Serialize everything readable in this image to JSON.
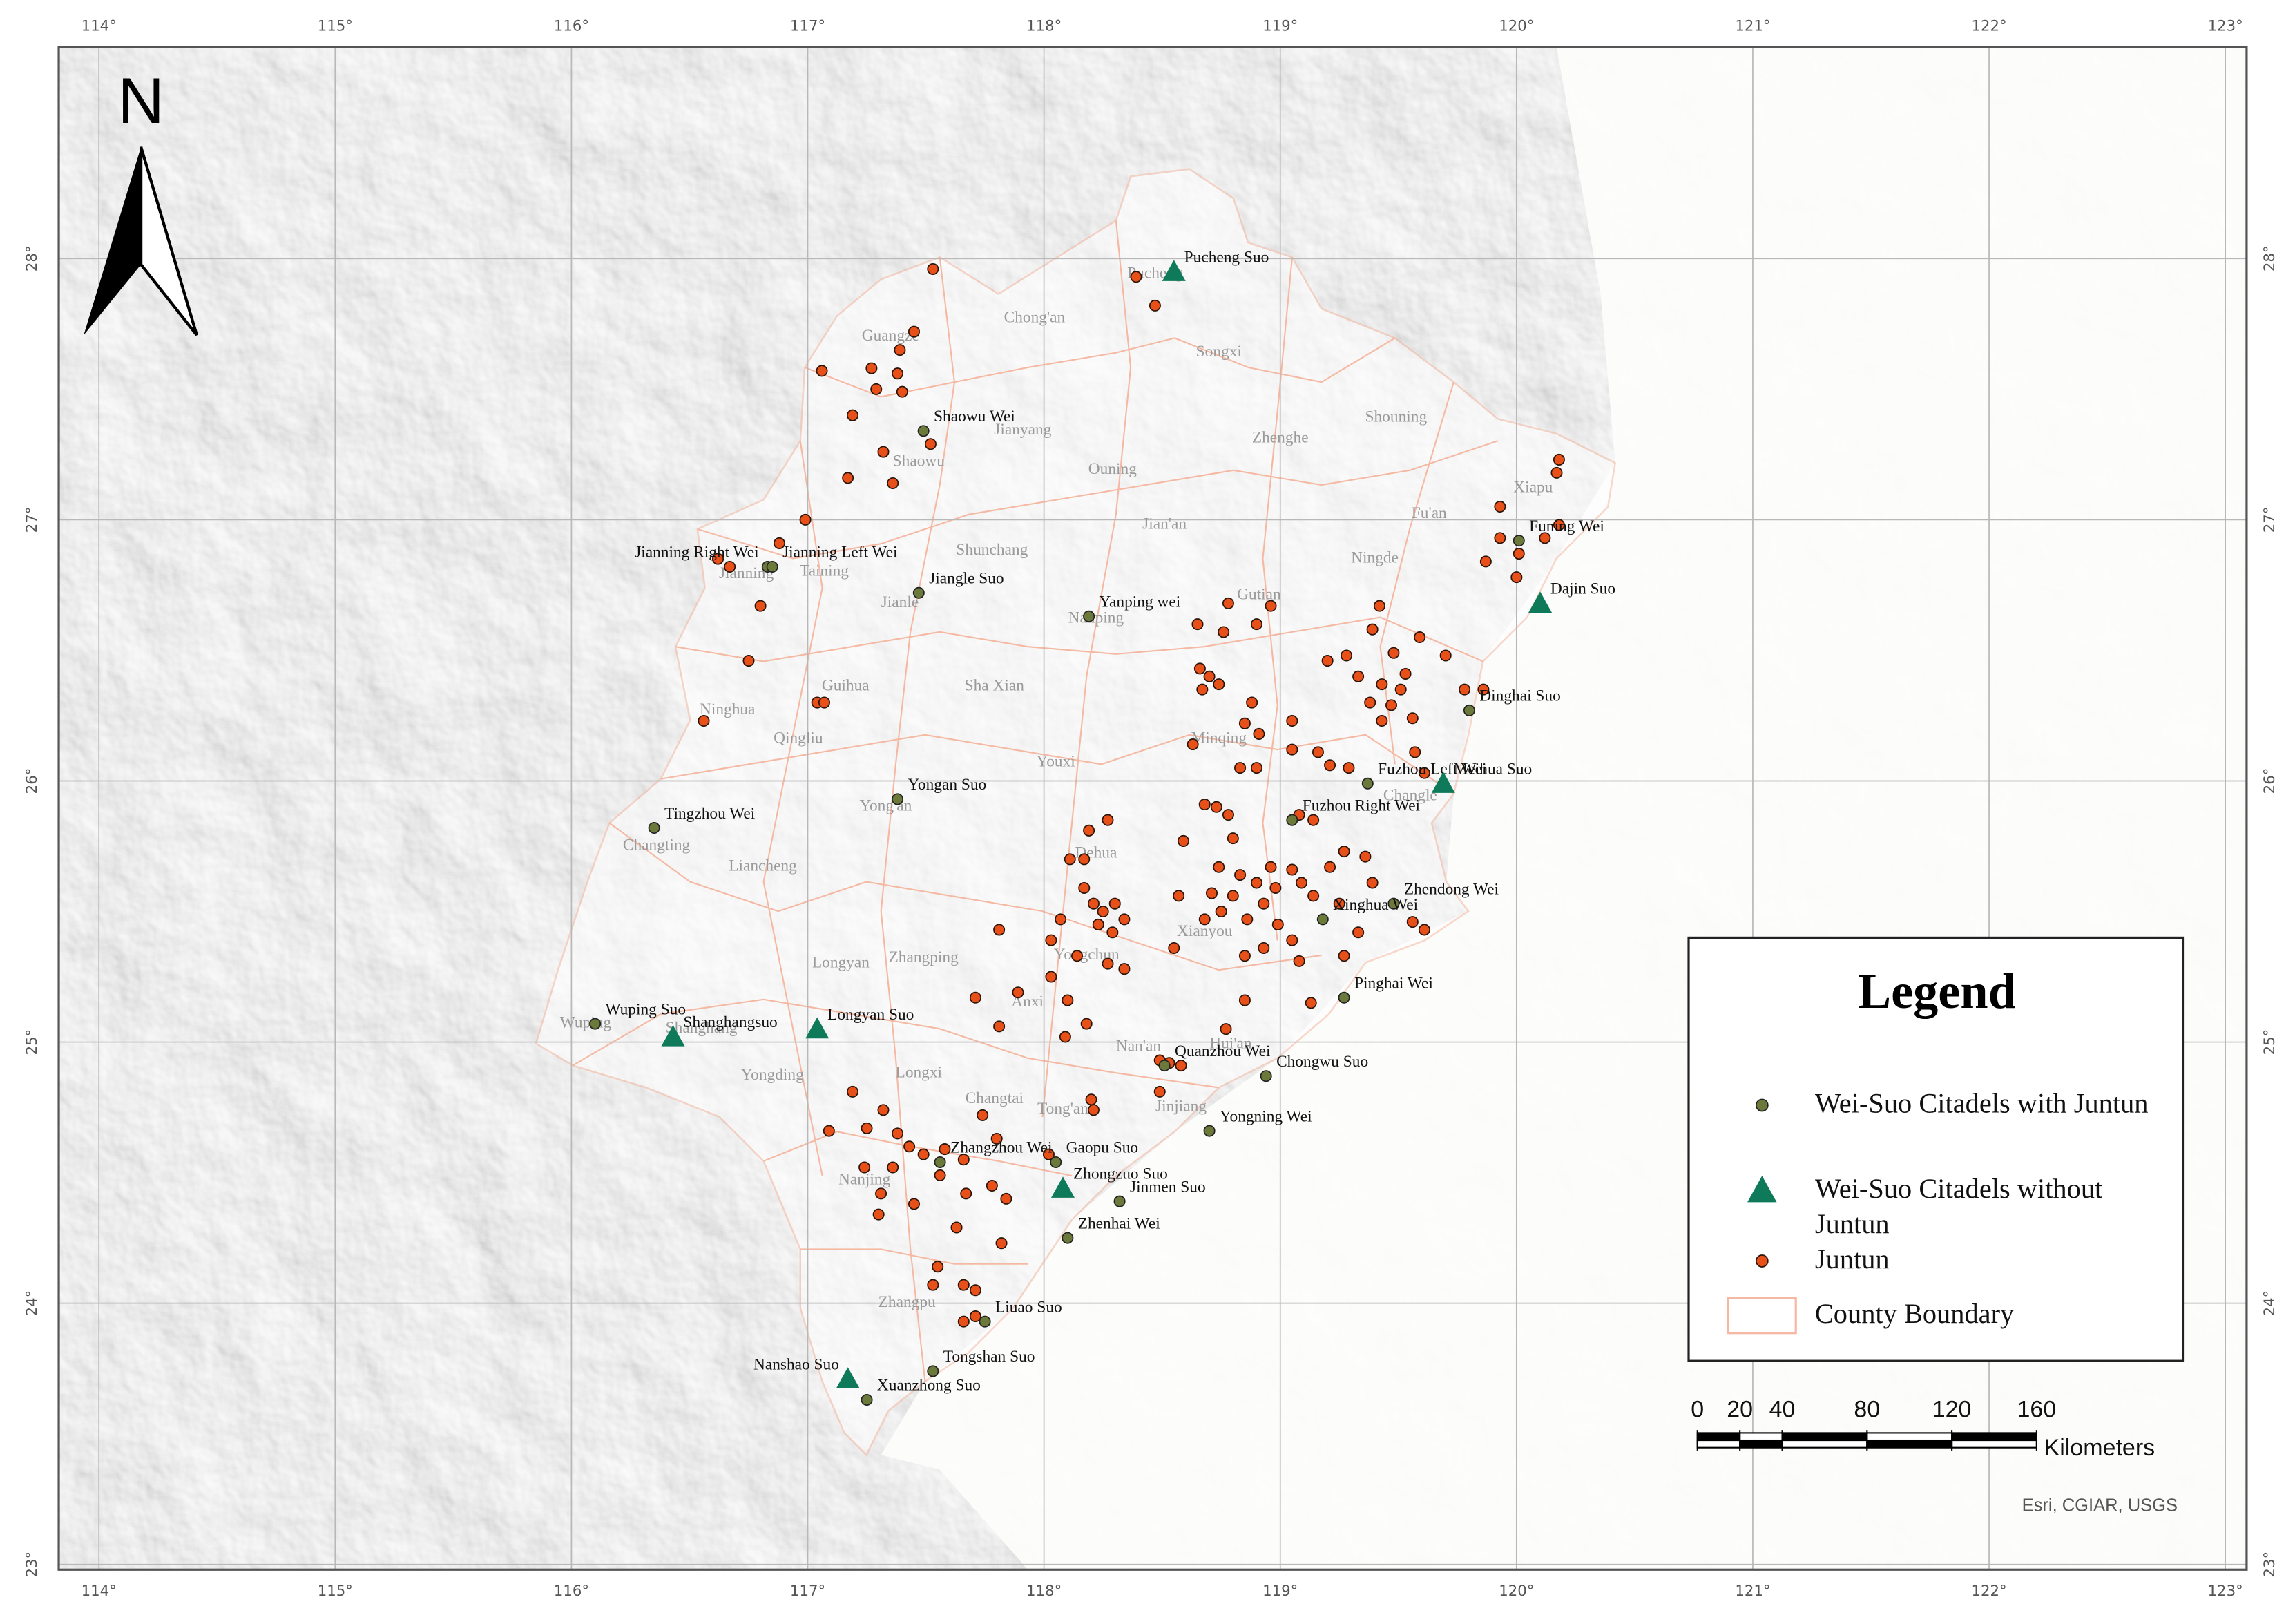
{
  "map": {
    "xlim": [
      113.83,
      123.09
    ],
    "ylim": [
      22.98,
      28.81
    ],
    "xticks": [
      {
        "value": 114,
        "label": "114°"
      },
      {
        "value": 115,
        "label": "115°"
      },
      {
        "value": 116,
        "label": "116°"
      },
      {
        "value": 117,
        "label": "117°"
      },
      {
        "value": 118,
        "label": "118°"
      },
      {
        "value": 119,
        "label": "119°"
      },
      {
        "value": 120,
        "label": "120°"
      },
      {
        "value": 121,
        "label": "121°"
      },
      {
        "value": 122,
        "label": "122°"
      },
      {
        "value": 123,
        "label": "123°"
      }
    ],
    "yticks": [
      {
        "value": 23,
        "label": "23°"
      },
      {
        "value": 24,
        "label": "24°"
      },
      {
        "value": 25,
        "label": "25°"
      },
      {
        "value": 26,
        "label": "26°"
      },
      {
        "value": 27,
        "label": "27°"
      },
      {
        "value": 28,
        "label": "28°"
      }
    ],
    "grid": true,
    "north": "N",
    "colors": {
      "with_juntun": "#6b7a3a",
      "without_juntun": "#0f7a5a",
      "juntun": "#e8501a",
      "county_boundary": "#f5b9a3"
    },
    "citadels_with_juntun": [
      {
        "name": "Shaowu Wei",
        "lon": 117.49,
        "lat": 27.34
      },
      {
        "name": "Jianning Right Wei",
        "lon": 116.83,
        "lat": 26.82
      },
      {
        "name": "Jianning Left Wei",
        "lon": 116.85,
        "lat": 26.82
      },
      {
        "name": "Jiangle Suo",
        "lon": 117.47,
        "lat": 26.72
      },
      {
        "name": "Yanping wei",
        "lon": 118.19,
        "lat": 26.63
      },
      {
        "name": "Funing Wei",
        "lon": 120.01,
        "lat": 26.92
      },
      {
        "name": "Dinghai Suo",
        "lon": 119.8,
        "lat": 26.27
      },
      {
        "name": "Fuzhou Left Wei",
        "lon": 119.37,
        "lat": 25.99
      },
      {
        "name": "Fuzhou Right Wei",
        "lon": 119.05,
        "lat": 25.85
      },
      {
        "name": "Zhendong Wei",
        "lon": 119.48,
        "lat": 25.53
      },
      {
        "name": "Yongan Suo",
        "lon": 117.38,
        "lat": 25.93
      },
      {
        "name": "Tingzhou Wei",
        "lon": 116.35,
        "lat": 25.82
      },
      {
        "name": "Xinghua Wei",
        "lon": 119.18,
        "lat": 25.47
      },
      {
        "name": "Pinghai Wei",
        "lon": 119.27,
        "lat": 25.17
      },
      {
        "name": "Wuping Suo",
        "lon": 116.1,
        "lat": 25.07
      },
      {
        "name": "Chongwu Suo",
        "lon": 118.94,
        "lat": 24.87
      },
      {
        "name": "Quanzhou Wei",
        "lon": 118.51,
        "lat": 24.91
      },
      {
        "name": "Yongning Wei",
        "lon": 118.7,
        "lat": 24.66
      },
      {
        "name": "Zhangzhou Wei",
        "lon": 117.56,
        "lat": 24.54
      },
      {
        "name": "Gaopu Suo",
        "lon": 118.05,
        "lat": 24.54
      },
      {
        "name": "Jinmen Suo",
        "lon": 118.32,
        "lat": 24.39
      },
      {
        "name": "Zhenhai Wei",
        "lon": 118.1,
        "lat": 24.25
      },
      {
        "name": "Liuao Suo",
        "lon": 117.75,
        "lat": 23.93
      },
      {
        "name": "Tongshan Suo",
        "lon": 117.53,
        "lat": 23.74
      },
      {
        "name": "Xuanzhong Suo",
        "lon": 117.25,
        "lat": 23.63
      }
    ],
    "citadels_without_juntun": [
      {
        "name": "Pucheng Suo",
        "lon": 118.55,
        "lat": 27.95
      },
      {
        "name": "Dajin Suo",
        "lon": 120.1,
        "lat": 26.68
      },
      {
        "name": "Meihua Suo",
        "lon": 119.69,
        "lat": 25.99
      },
      {
        "name": "Shanghangsuo",
        "lon": 116.43,
        "lat": 25.02
      },
      {
        "name": "Longyan Suo",
        "lon": 117.04,
        "lat": 25.05
      },
      {
        "name": "Zhongzuo Suo",
        "lon": 118.08,
        "lat": 24.44
      },
      {
        "name": "Nanshao Suo",
        "lon": 117.17,
        "lat": 23.71
      }
    ],
    "counties": [
      {
        "name": "Pucheng",
        "lon": 118.47,
        "lat": 27.94
      },
      {
        "name": "Chong'an",
        "lon": 117.96,
        "lat": 27.77
      },
      {
        "name": "Songxi",
        "lon": 118.74,
        "lat": 27.64
      },
      {
        "name": "Guangze",
        "lon": 117.35,
        "lat": 27.7
      },
      {
        "name": "Jianyang",
        "lon": 117.91,
        "lat": 27.34
      },
      {
        "name": "Shaowu",
        "lon": 117.47,
        "lat": 27.22
      },
      {
        "name": "Shouning",
        "lon": 119.49,
        "lat": 27.39
      },
      {
        "name": "Zhenghe",
        "lon": 119.0,
        "lat": 27.31
      },
      {
        "name": "Ouning",
        "lon": 118.29,
        "lat": 27.19
      },
      {
        "name": "Xiapu",
        "lon": 120.07,
        "lat": 27.12
      },
      {
        "name": "Fu'an",
        "lon": 119.63,
        "lat": 27.02
      },
      {
        "name": "Jian'an",
        "lon": 118.51,
        "lat": 26.98
      },
      {
        "name": "Taining",
        "lon": 117.07,
        "lat": 26.8
      },
      {
        "name": "Jianning",
        "lon": 116.74,
        "lat": 26.79
      },
      {
        "name": "Shunchang",
        "lon": 117.78,
        "lat": 26.88
      },
      {
        "name": "Jianle",
        "lon": 117.39,
        "lat": 26.68
      },
      {
        "name": "Ningde",
        "lon": 119.4,
        "lat": 26.85
      },
      {
        "name": "Gutian",
        "lon": 118.91,
        "lat": 26.71
      },
      {
        "name": "Nanping",
        "lon": 118.22,
        "lat": 26.62
      },
      {
        "name": "Guihua",
        "lon": 117.16,
        "lat": 26.36
      },
      {
        "name": "Sha Xian",
        "lon": 117.79,
        "lat": 26.36
      },
      {
        "name": "Ninghua",
        "lon": 116.66,
        "lat": 26.27
      },
      {
        "name": "Qingliu",
        "lon": 116.96,
        "lat": 26.16
      },
      {
        "name": "Minqing",
        "lon": 118.74,
        "lat": 26.16
      },
      {
        "name": "Youxi",
        "lon": 118.05,
        "lat": 26.07
      },
      {
        "name": "Yong'an",
        "lon": 117.33,
        "lat": 25.9
      },
      {
        "name": "Changle",
        "lon": 119.55,
        "lat": 25.94
      },
      {
        "name": "Changting",
        "lon": 116.36,
        "lat": 25.75
      },
      {
        "name": "Liancheng",
        "lon": 116.81,
        "lat": 25.67
      },
      {
        "name": "Dehua",
        "lon": 118.22,
        "lat": 25.72
      },
      {
        "name": "Longyan",
        "lon": 117.14,
        "lat": 25.3
      },
      {
        "name": "Zhangping",
        "lon": 117.49,
        "lat": 25.32
      },
      {
        "name": "Yongchun",
        "lon": 118.18,
        "lat": 25.33
      },
      {
        "name": "Anxi",
        "lon": 117.93,
        "lat": 25.15
      },
      {
        "name": "Xianyou",
        "lon": 118.68,
        "lat": 25.42
      },
      {
        "name": "Wuping",
        "lon": 116.06,
        "lat": 25.07
      },
      {
        "name": "Shanghang",
        "lon": 116.55,
        "lat": 25.05
      },
      {
        "name": "Yongding",
        "lon": 116.85,
        "lat": 24.87
      },
      {
        "name": "Nan'an",
        "lon": 118.4,
        "lat": 24.98
      },
      {
        "name": "Hui'an",
        "lon": 118.79,
        "lat": 24.99
      },
      {
        "name": "Longxi",
        "lon": 117.47,
        "lat": 24.88
      },
      {
        "name": "Changtai",
        "lon": 117.79,
        "lat": 24.78
      },
      {
        "name": "Tong'an",
        "lon": 118.08,
        "lat": 24.74
      },
      {
        "name": "Jinjiang",
        "lon": 118.58,
        "lat": 24.75
      },
      {
        "name": "Nanjing",
        "lon": 117.24,
        "lat": 24.47
      },
      {
        "name": "Zhangpu",
        "lon": 117.42,
        "lat": 24.0
      }
    ],
    "juntun": [
      [
        117.53,
        27.96
      ],
      [
        118.39,
        27.93
      ],
      [
        118.47,
        27.82
      ],
      [
        117.45,
        27.72
      ],
      [
        117.39,
        27.65
      ],
      [
        117.27,
        27.58
      ],
      [
        117.38,
        27.56
      ],
      [
        117.29,
        27.5
      ],
      [
        117.4,
        27.49
      ],
      [
        117.06,
        27.57
      ],
      [
        117.19,
        27.4
      ],
      [
        117.52,
        27.29
      ],
      [
        117.32,
        27.26
      ],
      [
        117.36,
        27.14
      ],
      [
        117.17,
        27.16
      ],
      [
        116.99,
        27.0
      ],
      [
        116.88,
        26.91
      ],
      [
        116.62,
        26.85
      ],
      [
        116.67,
        26.82
      ],
      [
        116.8,
        26.67
      ],
      [
        116.75,
        26.46
      ],
      [
        116.56,
        26.23
      ],
      [
        117.04,
        26.3
      ],
      [
        117.07,
        26.3
      ],
      [
        120.18,
        27.23
      ],
      [
        120.17,
        27.18
      ],
      [
        119.93,
        27.05
      ],
      [
        120.18,
        26.98
      ],
      [
        120.12,
        26.93
      ],
      [
        120.01,
        26.87
      ],
      [
        119.93,
        26.93
      ],
      [
        119.87,
        26.84
      ],
      [
        120.0,
        26.78
      ],
      [
        119.42,
        26.67
      ],
      [
        119.39,
        26.58
      ],
      [
        119.59,
        26.55
      ],
      [
        119.7,
        26.48
      ],
      [
        119.28,
        26.48
      ],
      [
        119.48,
        26.49
      ],
      [
        119.43,
        26.37
      ],
      [
        119.51,
        26.35
      ],
      [
        119.47,
        26.29
      ],
      [
        119.56,
        26.24
      ],
      [
        119.38,
        26.3
      ],
      [
        119.2,
        26.46
      ],
      [
        119.86,
        26.35
      ],
      [
        119.78,
        26.35
      ],
      [
        119.57,
        26.11
      ],
      [
        119.61,
        26.03
      ],
      [
        119.43,
        26.23
      ],
      [
        119.53,
        26.41
      ],
      [
        119.33,
        26.4
      ],
      [
        118.78,
        26.68
      ],
      [
        118.96,
        26.67
      ],
      [
        118.9,
        26.6
      ],
      [
        118.65,
        26.6
      ],
      [
        118.76,
        26.57
      ],
      [
        118.66,
        26.43
      ],
      [
        118.7,
        26.4
      ],
      [
        118.74,
        26.37
      ],
      [
        118.67,
        26.35
      ],
      [
        118.88,
        26.3
      ],
      [
        118.85,
        26.22
      ],
      [
        118.91,
        26.18
      ],
      [
        119.05,
        26.23
      ],
      [
        119.05,
        26.12
      ],
      [
        119.16,
        26.11
      ],
      [
        119.21,
        26.06
      ],
      [
        119.29,
        26.05
      ],
      [
        118.63,
        26.14
      ],
      [
        118.83,
        26.05
      ],
      [
        118.9,
        26.05
      ],
      [
        118.73,
        25.9
      ],
      [
        118.78,
        25.87
      ],
      [
        118.68,
        25.91
      ],
      [
        118.59,
        25.77
      ],
      [
        118.8,
        25.78
      ],
      [
        119.08,
        25.87
      ],
      [
        119.14,
        25.85
      ],
      [
        118.74,
        25.67
      ],
      [
        118.83,
        25.64
      ],
      [
        118.9,
        25.61
      ],
      [
        118.96,
        25.67
      ],
      [
        119.05,
        25.66
      ],
      [
        118.71,
        25.57
      ],
      [
        118.8,
        25.56
      ],
      [
        118.75,
        25.5
      ],
      [
        118.86,
        25.47
      ],
      [
        118.93,
        25.53
      ],
      [
        118.98,
        25.59
      ],
      [
        119.09,
        25.61
      ],
      [
        119.14,
        25.56
      ],
      [
        119.21,
        25.67
      ],
      [
        119.27,
        25.73
      ],
      [
        119.36,
        25.71
      ],
      [
        119.39,
        25.61
      ],
      [
        119.25,
        25.53
      ],
      [
        119.33,
        25.42
      ],
      [
        119.05,
        25.39
      ],
      [
        118.93,
        25.36
      ],
      [
        118.85,
        25.33
      ],
      [
        119.08,
        25.31
      ],
      [
        118.99,
        25.45
      ],
      [
        118.68,
        25.47
      ],
      [
        119.56,
        25.46
      ],
      [
        119.61,
        25.43
      ],
      [
        119.27,
        25.33
      ],
      [
        119.13,
        25.15
      ],
      [
        118.85,
        25.16
      ],
      [
        118.77,
        25.05
      ],
      [
        118.11,
        25.7
      ],
      [
        118.17,
        25.7
      ],
      [
        118.17,
        25.59
      ],
      [
        118.21,
        25.53
      ],
      [
        118.25,
        25.5
      ],
      [
        118.3,
        25.53
      ],
      [
        118.23,
        25.45
      ],
      [
        118.29,
        25.42
      ],
      [
        118.34,
        25.47
      ],
      [
        118.07,
        25.47
      ],
      [
        118.03,
        25.39
      ],
      [
        118.14,
        25.33
      ],
      [
        118.27,
        25.3
      ],
      [
        118.34,
        25.28
      ],
      [
        118.57,
        25.56
      ],
      [
        118.55,
        25.36
      ],
      [
        118.27,
        25.85
      ],
      [
        118.19,
        25.81
      ],
      [
        118.03,
        25.25
      ],
      [
        118.1,
        25.16
      ],
      [
        118.18,
        25.07
      ],
      [
        118.09,
        25.02
      ],
      [
        117.81,
        25.06
      ],
      [
        117.89,
        25.19
      ],
      [
        117.71,
        25.17
      ],
      [
        117.81,
        25.43
      ],
      [
        118.49,
        24.93
      ],
      [
        118.53,
        24.92
      ],
      [
        118.58,
        24.91
      ],
      [
        118.49,
        24.81
      ],
      [
        118.21,
        24.74
      ],
      [
        118.2,
        24.78
      ],
      [
        117.19,
        24.81
      ],
      [
        117.32,
        24.74
      ],
      [
        117.25,
        24.67
      ],
      [
        117.09,
        24.66
      ],
      [
        117.38,
        24.65
      ],
      [
        117.74,
        24.72
      ],
      [
        117.8,
        24.63
      ],
      [
        117.43,
        24.6
      ],
      [
        117.49,
        24.57
      ],
      [
        117.58,
        24.59
      ],
      [
        117.66,
        24.55
      ],
      [
        117.24,
        24.52
      ],
      [
        117.36,
        24.52
      ],
      [
        117.56,
        24.49
      ],
      [
        117.78,
        24.45
      ],
      [
        117.84,
        24.4
      ],
      [
        117.31,
        24.42
      ],
      [
        117.67,
        24.42
      ],
      [
        117.3,
        24.34
      ],
      [
        117.45,
        24.38
      ],
      [
        117.82,
        24.23
      ],
      [
        117.63,
        24.29
      ],
      [
        117.55,
        24.14
      ],
      [
        117.66,
        24.07
      ],
      [
        117.53,
        24.07
      ],
      [
        117.71,
        24.05
      ],
      [
        117.71,
        23.95
      ],
      [
        117.66,
        23.93
      ],
      [
        118.02,
        24.57
      ]
    ],
    "legend": {
      "title": "Legend",
      "items": [
        "Wei-Suo Citadels with Juntun",
        "Wei-Suo Citadels without Juntun",
        "Juntun",
        "County Boundary"
      ]
    },
    "scale_bar": {
      "ticks": [
        0,
        20,
        40,
        80,
        120,
        160
      ],
      "unit": "Kilometers"
    },
    "attribution": "Esri, CGIAR, USGS"
  }
}
